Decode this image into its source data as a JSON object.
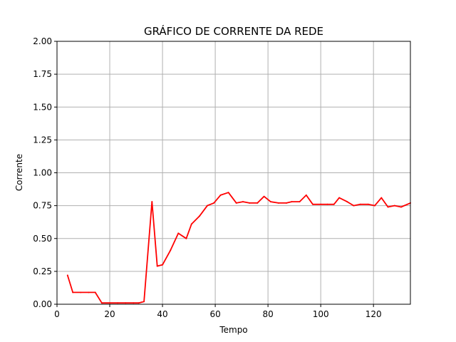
{
  "chart_data": {
    "type": "line",
    "title": "GRÁFICO DE CORRENTE DA REDE",
    "xlabel": "Tempo",
    "ylabel": "Corrente",
    "xlim": [
      0,
      134
    ],
    "ylim": [
      0,
      2.0
    ],
    "grid": true,
    "x_ticks": [
      0,
      20,
      40,
      60,
      80,
      100,
      120
    ],
    "x_tick_labels": [
      "0",
      "20",
      "40",
      "60",
      "80",
      "100",
      "120"
    ],
    "y_ticks": [
      0,
      0.25,
      0.5,
      0.75,
      1.0,
      1.25,
      1.5,
      1.75,
      2.0
    ],
    "y_tick_labels": [
      "0.00",
      "0.25",
      "0.50",
      "0.75",
      "1.00",
      "1.25",
      "1.50",
      "1.75",
      "2.00"
    ],
    "series": [
      {
        "color": "#ff0000",
        "x": [
          4,
          6,
          9,
          12,
          14.5,
          17,
          20,
          23,
          26,
          29,
          31,
          33,
          36,
          38,
          40,
          43,
          46,
          49,
          51,
          54,
          57,
          59.5,
          62,
          65,
          68,
          70.5,
          73,
          76,
          78.5,
          81,
          84,
          87,
          89,
          92,
          94.5,
          97,
          100,
          102.5,
          105,
          107,
          110,
          112.5,
          115,
          118,
          120.5,
          123,
          125.5,
          128,
          130.5,
          134
        ],
        "y": [
          0.22,
          0.09,
          0.09,
          0.09,
          0.09,
          0.01,
          0.01,
          0.01,
          0.01,
          0.01,
          0.01,
          0.02,
          0.78,
          0.29,
          0.3,
          0.41,
          0.54,
          0.5,
          0.61,
          0.67,
          0.75,
          0.77,
          0.83,
          0.85,
          0.77,
          0.78,
          0.77,
          0.77,
          0.82,
          0.78,
          0.77,
          0.77,
          0.78,
          0.78,
          0.83,
          0.76,
          0.76,
          0.76,
          0.76,
          0.81,
          0.78,
          0.75,
          0.76,
          0.76,
          0.75,
          0.81,
          0.74,
          0.75,
          0.74,
          0.77
        ]
      }
    ]
  }
}
